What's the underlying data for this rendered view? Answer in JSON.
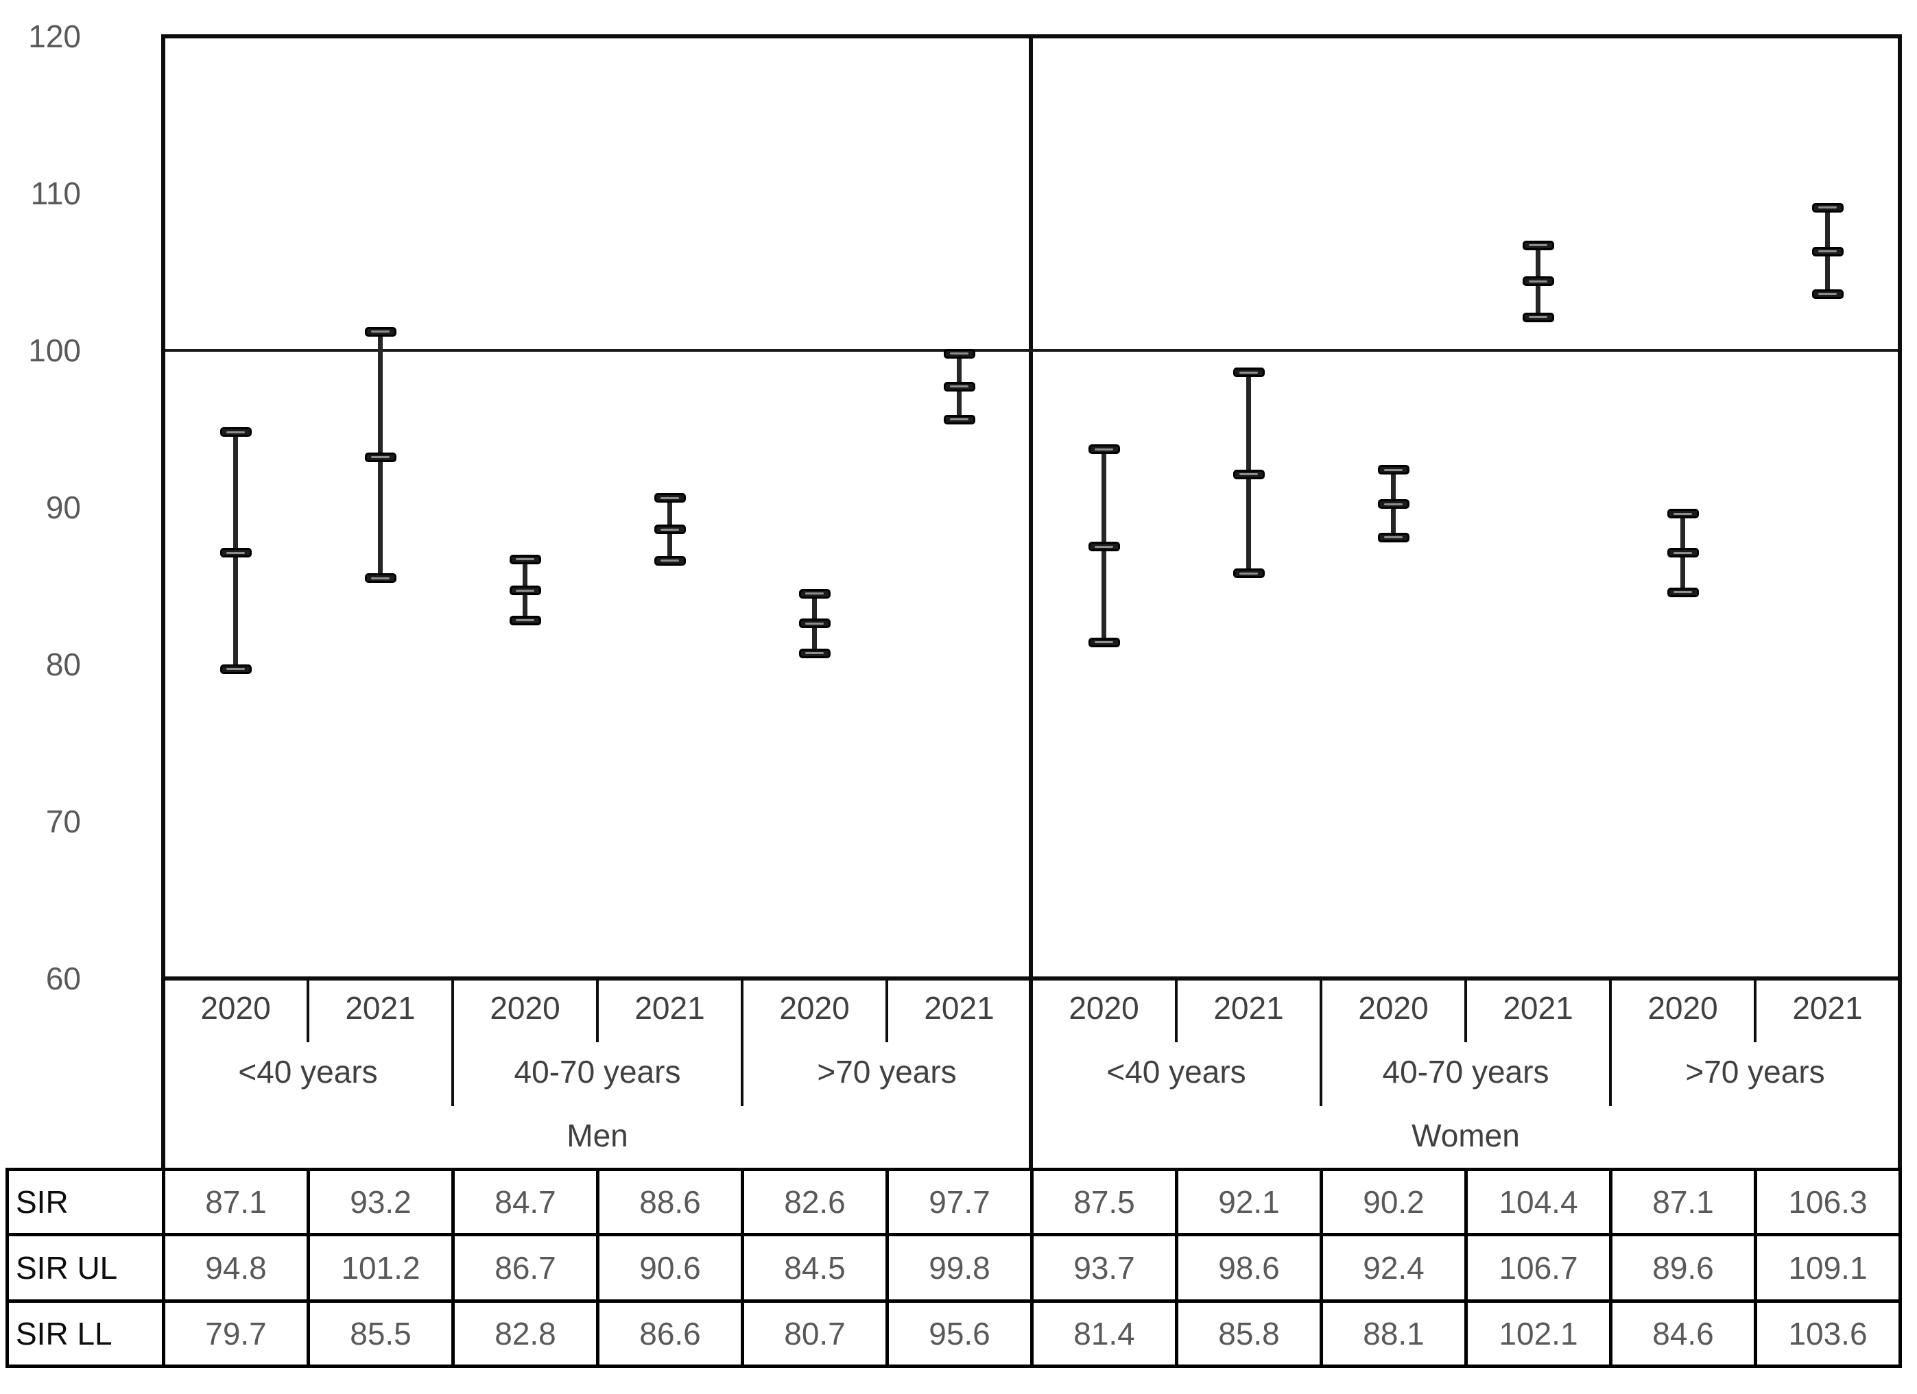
{
  "chart_data": {
    "type": "errorbar",
    "title": "",
    "ylabel": "",
    "xlabel": "",
    "ylim": [
      60,
      120
    ],
    "yticks": [
      120,
      110,
      100,
      90,
      80,
      70,
      60
    ],
    "reference_line": 100,
    "grid": "off",
    "legend_position": "none",
    "x_structure": {
      "years": [
        "2020",
        "2021"
      ],
      "age_groups": [
        "<40 years",
        "40-70 years",
        ">70 years"
      ],
      "genders": [
        "Men",
        "Women"
      ]
    },
    "points": [
      {
        "gender": "Men",
        "age_group": "<40 years",
        "year": "2020",
        "sir": 87.1,
        "sir_ul": 94.8,
        "sir_ll": 79.7
      },
      {
        "gender": "Men",
        "age_group": "<40 years",
        "year": "2021",
        "sir": 93.2,
        "sir_ul": 101.2,
        "sir_ll": 85.5
      },
      {
        "gender": "Men",
        "age_group": "40-70 years",
        "year": "2020",
        "sir": 84.7,
        "sir_ul": 86.7,
        "sir_ll": 82.8
      },
      {
        "gender": "Men",
        "age_group": "40-70 years",
        "year": "2021",
        "sir": 88.6,
        "sir_ul": 90.6,
        "sir_ll": 86.6
      },
      {
        "gender": "Men",
        "age_group": ">70 years",
        "year": "2020",
        "sir": 82.6,
        "sir_ul": 84.5,
        "sir_ll": 80.7
      },
      {
        "gender": "Men",
        "age_group": ">70 years",
        "year": "2021",
        "sir": 97.7,
        "sir_ul": 99.8,
        "sir_ll": 95.6
      },
      {
        "gender": "Women",
        "age_group": "<40 years",
        "year": "2020",
        "sir": 87.5,
        "sir_ul": 93.7,
        "sir_ll": 81.4
      },
      {
        "gender": "Women",
        "age_group": "<40 years",
        "year": "2021",
        "sir": 92.1,
        "sir_ul": 98.6,
        "sir_ll": 85.8
      },
      {
        "gender": "Women",
        "age_group": "40-70 years",
        "year": "2020",
        "sir": 90.2,
        "sir_ul": 92.4,
        "sir_ll": 88.1
      },
      {
        "gender": "Women",
        "age_group": "40-70 years",
        "year": "2021",
        "sir": 104.4,
        "sir_ul": 106.7,
        "sir_ll": 102.1
      },
      {
        "gender": "Women",
        "age_group": ">70 years",
        "year": "2020",
        "sir": 87.1,
        "sir_ul": 89.6,
        "sir_ll": 84.6
      },
      {
        "gender": "Women",
        "age_group": ">70 years",
        "year": "2021",
        "sir": 106.3,
        "sir_ul": 109.1,
        "sir_ll": 103.6
      }
    ],
    "table_row_labels": [
      "SIR",
      "SIR UL",
      "SIR LL"
    ]
  },
  "colors": {
    "line": "#0d0d0d",
    "reference_line": "#1a1a1a",
    "axis_tick_text": "#595959",
    "category_text": "#404040",
    "table_value_text": "#595959",
    "table_label_text": "#0d0d0d",
    "marker_fill": "#1c1c1c",
    "marker_stripe": "#8f8f8f",
    "background": "#ffffff"
  }
}
